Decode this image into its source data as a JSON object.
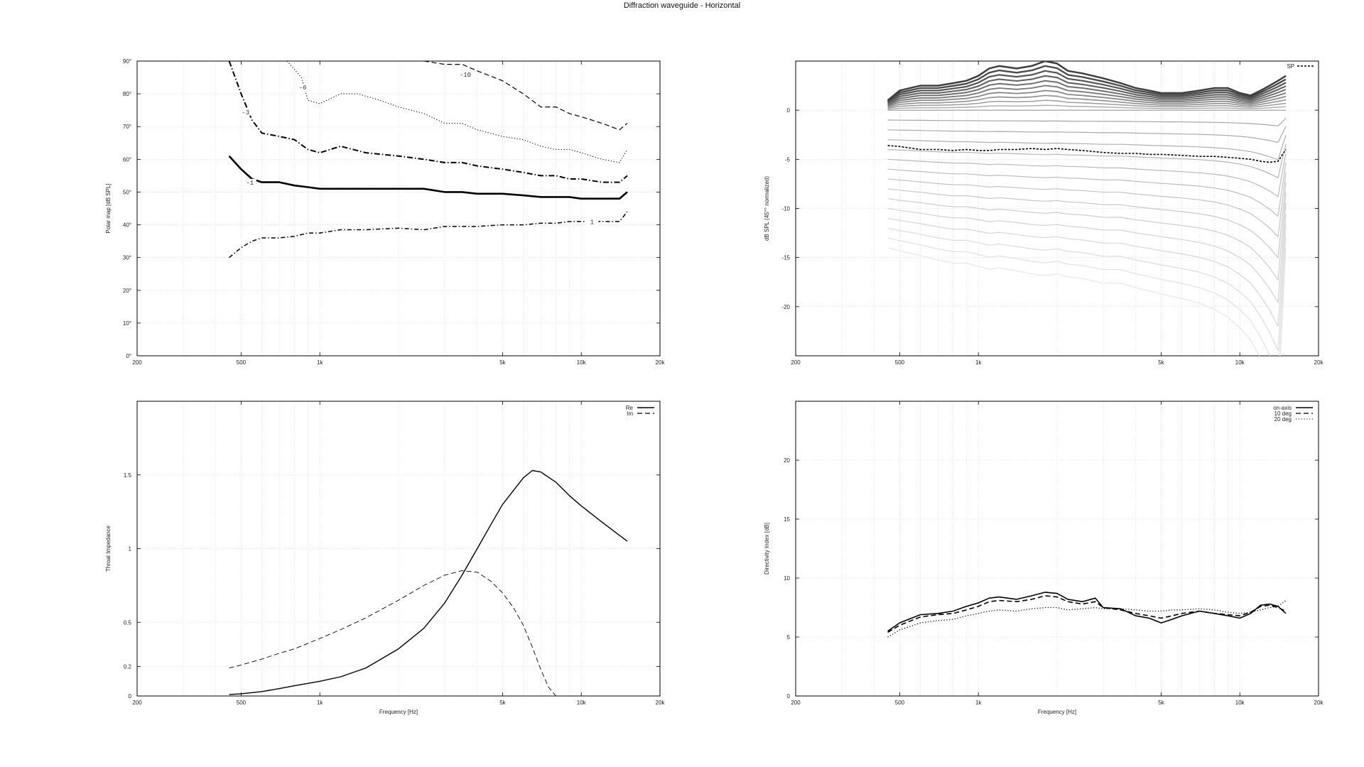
{
  "title": "Diffraction waveguide - Horizontal",
  "colors": {
    "background": "#ffffff",
    "axis": "#000000",
    "grid": "#d9d9d9",
    "line": "#000000"
  },
  "chart_data": [
    {
      "id": "polar",
      "type": "line",
      "xscale": "log",
      "xlim": [
        200,
        20000
      ],
      "ylim": [
        0,
        90
      ],
      "xticks": [
        200,
        500,
        1000,
        5000,
        10000,
        20000
      ],
      "xtick_labels": [
        "200",
        "500",
        "1k",
        "5k",
        "10k",
        "20k"
      ],
      "yticks": [
        0,
        10,
        20,
        30,
        40,
        50,
        60,
        70,
        80,
        90
      ],
      "ytick_labels": [
        "0°",
        "10°",
        "20°",
        "30°",
        "40°",
        "50°",
        "60°",
        "70°",
        "80°",
        "90°"
      ],
      "ylabel": "Polar map [dB SPL]",
      "xlabel": "",
      "grid": true,
      "series": [
        {
          "label": "-10",
          "style": "dashed",
          "x": [
            2500,
            3000,
            3500,
            4000,
            5000,
            6000,
            7000,
            8000,
            9000,
            10000,
            12000,
            14000,
            15000
          ],
          "y": [
            90,
            89,
            89,
            87,
            84,
            80,
            76,
            76,
            74,
            73,
            71,
            69,
            71
          ]
        },
        {
          "label": "-6",
          "style": "dotted",
          "x": [
            750,
            850,
            900,
            1000,
            1200,
            1400,
            1700,
            2000,
            2500,
            3000,
            3500,
            4000,
            5000,
            6000,
            7000,
            8000,
            9000,
            10000,
            12000,
            14000,
            15000
          ],
          "y": [
            90,
            85,
            78,
            77,
            80,
            80,
            78,
            76,
            74,
            71,
            71,
            69,
            67,
            66,
            64,
            63,
            63,
            62,
            60,
            59,
            63
          ]
        },
        {
          "label": "-3",
          "style": "dashdot",
          "x": [
            450,
            500,
            550,
            600,
            700,
            800,
            900,
            1000,
            1200,
            1500,
            2000,
            2500,
            3000,
            3500,
            4000,
            5000,
            6000,
            7000,
            8000,
            9000,
            10000,
            12000,
            14000,
            15000
          ],
          "y": [
            90,
            80,
            72,
            68,
            67,
            66,
            63,
            62,
            64,
            62,
            61,
            60,
            59,
            59,
            58,
            57,
            56,
            55,
            55,
            54,
            54,
            53,
            53,
            55
          ]
        },
        {
          "label": "-1",
          "style": "bold",
          "x": [
            450,
            500,
            550,
            600,
            700,
            800,
            900,
            1000,
            1200,
            1500,
            2000,
            2500,
            3000,
            3500,
            4000,
            5000,
            6000,
            7000,
            8000,
            9000,
            10000,
            12000,
            14000,
            15000
          ],
          "y": [
            61,
            57,
            54,
            53,
            53,
            52,
            51.5,
            51,
            51,
            51,
            51,
            51,
            50,
            50,
            49.5,
            49.5,
            49,
            48.5,
            48.5,
            48.5,
            48,
            48,
            48,
            50
          ]
        },
        {
          "label": "1",
          "style": "dashdot-thin",
          "x": [
            450,
            500,
            550,
            600,
            700,
            800,
            900,
            1000,
            1200,
            1500,
            2000,
            2500,
            3000,
            3500,
            4000,
            5000,
            6000,
            7000,
            8000,
            9000,
            10000,
            12000,
            14000,
            15000
          ],
          "y": [
            30,
            33,
            35,
            36,
            36,
            36.5,
            37.5,
            37.5,
            38.5,
            38.5,
            39,
            38.5,
            39.5,
            39.5,
            39.5,
            40,
            40,
            40.5,
            40.5,
            41,
            41,
            41,
            41,
            44
          ]
        }
      ],
      "contour_labels": [
        {
          "text": "-10",
          "x": 3600,
          "y": 85.5
        },
        {
          "text": "-6",
          "x": 860,
          "y": 81.5
        },
        {
          "text": "-3",
          "x": 520,
          "y": 74
        },
        {
          "text": "-1",
          "x": 540,
          "y": 52.5
        },
        {
          "text": "1",
          "x": 11000,
          "y": 40.5
        }
      ]
    },
    {
      "id": "normalized",
      "type": "line",
      "xscale": "log",
      "xlim": [
        200,
        20000
      ],
      "ylim": [
        -25,
        5
      ],
      "xticks": [
        200,
        500,
        1000,
        5000,
        10000,
        20000
      ],
      "xtick_labels": [
        "200",
        "500",
        "1k",
        "5k",
        "10k",
        "20k"
      ],
      "yticks": [
        0,
        -5,
        -10,
        -15,
        -20
      ],
      "ytick_labels": [
        "0",
        "-5",
        "-10",
        "-15",
        "-20"
      ],
      "ylabel": "dB SPL (45°° normalized)",
      "xlabel": "",
      "grid": true,
      "x": [
        450,
        500,
        600,
        700,
        800,
        900,
        1000,
        1100,
        1200,
        1400,
        1600,
        1800,
        2000,
        2200,
        2500,
        3000,
        3500,
        4000,
        4500,
        5000,
        6000,
        7000,
        8000,
        9000,
        10000,
        11000,
        12000,
        13000,
        14000,
        15000
      ],
      "shape_pos": [
        0.2,
        0.4,
        0.5,
        0.5,
        0.55,
        0.6,
        0.7,
        0.85,
        0.9,
        0.85,
        0.9,
        1.0,
        0.95,
        0.8,
        0.75,
        0.65,
        0.55,
        0.45,
        0.4,
        0.35,
        0.35,
        0.4,
        0.45,
        0.45,
        0.35,
        0.3,
        0.4,
        0.5,
        0.6,
        0.7
      ],
      "shape_neg": [
        0.0,
        0.02,
        0.05,
        0.08,
        0.1,
        0.1,
        0.12,
        0.14,
        0.13,
        0.15,
        0.17,
        0.18,
        0.17,
        0.19,
        0.2,
        0.23,
        0.23,
        0.26,
        0.28,
        0.3,
        0.33,
        0.36,
        0.4,
        0.45,
        0.52,
        0.6,
        0.72,
        0.85,
        1.0,
        0.6
      ],
      "pos_amplitudes": [
        0.5,
        1.0,
        1.5,
        2.0,
        2.5,
        3.0,
        3.5,
        4.0,
        4.5,
        5.0
      ],
      "neg_amplitudes": [
        -1,
        -2,
        -3,
        -4,
        -5,
        -6,
        -7,
        -8,
        -9,
        -10,
        -11,
        -12,
        -13,
        -14
      ],
      "sp": {
        "name": "SP",
        "y": [
          -3.6,
          -3.7,
          -4.0,
          -4.0,
          -4.1,
          -4.0,
          -4.1,
          -4.1,
          -4.0,
          -4.0,
          -3.9,
          -4.0,
          -3.9,
          -4.0,
          -4.1,
          -4.3,
          -4.4,
          -4.4,
          -4.5,
          -4.5,
          -4.6,
          -4.7,
          -4.7,
          -4.8,
          -4.9,
          -5.0,
          -5.2,
          -5.3,
          -5.2,
          -4.0
        ]
      }
    },
    {
      "id": "impedance",
      "type": "line",
      "xscale": "log",
      "xlim": [
        200,
        20000
      ],
      "ylim": [
        0,
        2
      ],
      "xticks": [
        200,
        500,
        1000,
        5000,
        10000,
        20000
      ],
      "xtick_labels": [
        "200",
        "500",
        "1k",
        "5k",
        "10k",
        "20k"
      ],
      "yticks": [
        0,
        0.2,
        0.5,
        1,
        1.5
      ],
      "ytick_labels": [
        "0",
        "0.2",
        "0.5",
        "1",
        "1.5"
      ],
      "ylabel": "Throat Impedance",
      "xlabel": "Frequency [Hz]",
      "grid": true,
      "series": [
        {
          "name": "Re",
          "style": "solid",
          "x": [
            450,
            500,
            600,
            700,
            800,
            1000,
            1200,
            1500,
            2000,
            2500,
            3000,
            3500,
            4000,
            4500,
            5000,
            6000,
            6500,
            7000,
            8000,
            9000,
            10000,
            12000,
            14000,
            15000
          ],
          "y": [
            0.01,
            0.015,
            0.03,
            0.05,
            0.07,
            0.1,
            0.13,
            0.19,
            0.32,
            0.46,
            0.63,
            0.82,
            1.0,
            1.16,
            1.3,
            1.48,
            1.53,
            1.52,
            1.45,
            1.36,
            1.29,
            1.18,
            1.09,
            1.05
          ]
        },
        {
          "name": "Im",
          "style": "dashed",
          "x": [
            450,
            500,
            600,
            700,
            800,
            1000,
            1200,
            1500,
            2000,
            2500,
            3000,
            3500,
            4000,
            4500,
            5000,
            5500,
            6000,
            6500,
            7000,
            7500,
            8000
          ],
          "y": [
            0.19,
            0.21,
            0.25,
            0.29,
            0.32,
            0.39,
            0.45,
            0.53,
            0.65,
            0.75,
            0.82,
            0.85,
            0.84,
            0.78,
            0.7,
            0.6,
            0.48,
            0.33,
            0.18,
            0.06,
            0.0
          ]
        }
      ]
    },
    {
      "id": "directivity",
      "type": "line",
      "xscale": "log",
      "xlim": [
        200,
        20000
      ],
      "ylim": [
        0,
        25
      ],
      "xticks": [
        200,
        500,
        1000,
        5000,
        10000,
        20000
      ],
      "xtick_labels": [
        "200",
        "500",
        "1k",
        "5k",
        "10k",
        "20k"
      ],
      "yticks": [
        0,
        5,
        10,
        15,
        20
      ],
      "ytick_labels": [
        "0",
        "5",
        "10",
        "15",
        "20"
      ],
      "ylabel": "Directivity Index [dB]",
      "xlabel": "Frequency [Hz]",
      "grid": true,
      "series": [
        {
          "name": "on-axis",
          "style": "solid",
          "x": [
            450,
            500,
            600,
            700,
            800,
            900,
            1000,
            1100,
            1200,
            1400,
            1600,
            1800,
            2000,
            2200,
            2500,
            2800,
            3000,
            3500,
            4000,
            4500,
            5000,
            5500,
            6000,
            7000,
            8000,
            9000,
            10000,
            11000,
            12000,
            13000,
            14000,
            15000
          ],
          "y": [
            5.5,
            6.2,
            6.9,
            7.0,
            7.2,
            7.6,
            7.9,
            8.3,
            8.4,
            8.2,
            8.5,
            8.8,
            8.7,
            8.2,
            8.0,
            8.3,
            7.5,
            7.4,
            6.8,
            6.6,
            6.2,
            6.5,
            6.8,
            7.2,
            7.0,
            6.8,
            6.6,
            7.0,
            7.7,
            7.8,
            7.6,
            7.0
          ]
        },
        {
          "name": "10 deg",
          "style": "dashed",
          "x": [
            450,
            500,
            600,
            700,
            800,
            900,
            1000,
            1100,
            1200,
            1400,
            1600,
            1800,
            2000,
            2200,
            2500,
            2800,
            3000,
            3500,
            4000,
            4500,
            5000,
            5500,
            6000,
            7000,
            8000,
            9000,
            10000,
            11000,
            12000,
            13000,
            14000,
            15000
          ],
          "y": [
            5.4,
            6.0,
            6.7,
            6.9,
            7.0,
            7.3,
            7.6,
            8.0,
            8.1,
            8.0,
            8.2,
            8.5,
            8.4,
            8.0,
            7.8,
            8.0,
            7.5,
            7.3,
            7.0,
            6.8,
            6.6,
            6.8,
            7.0,
            7.2,
            7.0,
            6.9,
            6.8,
            7.1,
            7.6,
            7.7,
            7.5,
            7.2
          ]
        },
        {
          "name": "20 deg",
          "style": "dotted",
          "x": [
            450,
            500,
            600,
            700,
            800,
            900,
            1000,
            1100,
            1200,
            1400,
            1600,
            1800,
            2000,
            2200,
            2500,
            2800,
            3000,
            3500,
            4000,
            4500,
            5000,
            5500,
            6000,
            7000,
            8000,
            9000,
            10000,
            11000,
            12000,
            13000,
            14000,
            15000
          ],
          "y": [
            5.0,
            5.6,
            6.2,
            6.4,
            6.5,
            6.8,
            7.0,
            7.2,
            7.3,
            7.2,
            7.4,
            7.5,
            7.5,
            7.3,
            7.4,
            7.5,
            7.4,
            7.4,
            7.3,
            7.2,
            7.2,
            7.3,
            7.3,
            7.4,
            7.3,
            7.1,
            7.0,
            7.1,
            7.3,
            7.5,
            7.6,
            8.1
          ]
        }
      ]
    }
  ]
}
